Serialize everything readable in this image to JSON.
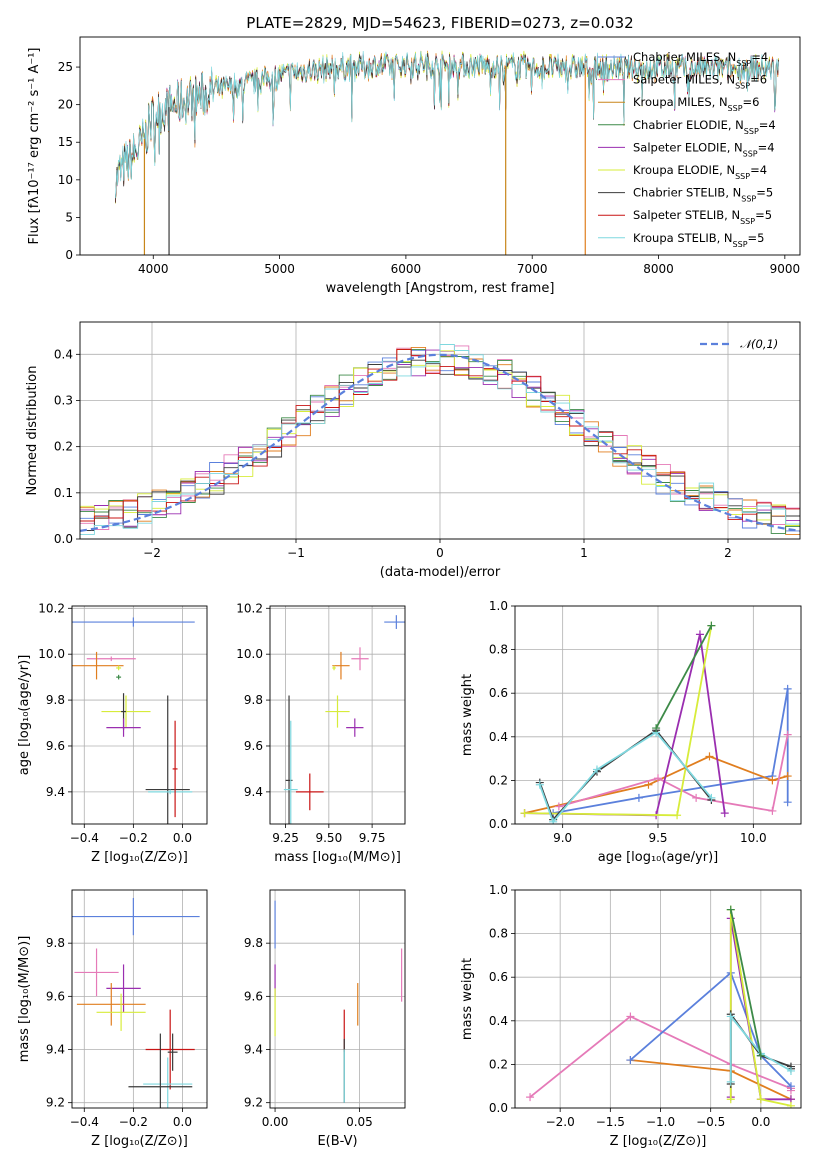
{
  "figure": {
    "title": "PLATE=2829, MJD=54623, FIBERID=0273, z=0.032"
  },
  "colors": {
    "Chabrier MILES": "#5b80dc",
    "Salpeter MILES": "#e57ab8",
    "Kroupa MILES": "#c8861a",
    "Chabrier ELODIE": "#3d8a48",
    "Salpeter ELODIE": "#9a2eb0",
    "Kroupa ELODIE": "#d7ec3a",
    "Chabrier STELIB": "#3b3b3b",
    "Salpeter STELIB": "#c81414",
    "Kroupa STELIB": "#7fd8df",
    "orange": "#e07e1f"
  },
  "chart_data": [
    {
      "id": "spectrum",
      "type": "line",
      "title": "PLATE=2829, MJD=54623, FIBERID=0273, z=0.032",
      "xlabel": "wavelength [Angstrom, rest frame]",
      "ylabel": "Flux [fλ10⁻¹⁷ erg cm⁻² s⁻¹ A⁻¹]",
      "xlim": [
        3420,
        9120
      ],
      "ylim": [
        0,
        29
      ],
      "xticks": [
        4000,
        5000,
        6000,
        7000,
        8000,
        9000
      ],
      "yticks": [
        0,
        5,
        10,
        15,
        20,
        25
      ],
      "legend_position": "right",
      "legend": [
        "Chabrier MILES, N_SSP=4",
        "Salpeter MILES, N_SSP=6",
        "Kroupa MILES, N_SSP=6",
        "Chabrier ELODIE, N_SSP=4",
        "Salpeter ELODIE, N_SSP=4",
        "Kroupa ELODIE, N_SSP=4",
        "Chabrier STELIB, N_SSP=5",
        "Salpeter STELIB, N_SSP=5",
        "Kroupa STELIB, N_SSP=5"
      ],
      "continuum": {
        "x": [
          3700,
          3780,
          3850,
          3920,
          4000,
          4100,
          4250,
          4500,
          4800,
          5000,
          5200,
          5500,
          5800,
          6000,
          6300,
          6600,
          6900,
          7200,
          7500,
          7800,
          8200,
          8600,
          8900
        ],
        "y": [
          10,
          12,
          13.5,
          15,
          18.5,
          19.5,
          20.5,
          22,
          23,
          23.8,
          24.5,
          25,
          25.2,
          25.3,
          25.3,
          25.2,
          25.1,
          24.9,
          24.9,
          24.9,
          24.8,
          24.8,
          24.8
        ]
      },
      "features": [
        {
          "series": "Kroupa MILES",
          "x": 3930,
          "y": 0
        },
        {
          "series": "Chabrier STELIB",
          "x": 4125,
          "y": 0
        },
        {
          "series": "Kroupa MILES",
          "x": 6790,
          "y": 0
        },
        {
          "series": "orange",
          "x": 7420,
          "y": 0
        }
      ],
      "x_range_note": [
        3700,
        8950
      ]
    },
    {
      "id": "residuals",
      "type": "area",
      "xlabel": "(data-model)/error",
      "ylabel": "Normed distribution",
      "xlim": [
        -2.5,
        2.5
      ],
      "ylim": [
        0,
        0.47
      ],
      "xticks": [
        -2,
        -1,
        0,
        1,
        2
      ],
      "yticks": [
        0.0,
        0.1,
        0.2,
        0.3,
        0.4
      ],
      "grid": true,
      "legend": [
        "𝒩(0,1)"
      ],
      "legend_position": "upper right",
      "normal": {
        "mean": 0,
        "sigma": 1,
        "style": "dashed"
      },
      "bin_width": 0.1
    },
    {
      "id": "age_vs_Z",
      "type": "scatter",
      "xlabel": "Z [log₁₀(Z/Z⊙)]",
      "ylabel": "age  [log₁₀(age/yr)]",
      "xlim": [
        -0.45,
        0.1
      ],
      "ylim": [
        9.26,
        10.21
      ],
      "xticks": [
        -0.4,
        -0.2,
        0.0
      ],
      "yticks": [
        9.4,
        9.6,
        9.8,
        10.0,
        10.2
      ],
      "grid": true,
      "points": [
        {
          "series": "Chabrier MILES",
          "x": -0.2,
          "xerr": 0.25,
          "y": 10.14,
          "yerr": 0.02
        },
        {
          "series": "Salpeter MILES",
          "x": -0.29,
          "xerr": 0.1,
          "y": 9.98,
          "yerr": 0.01
        },
        {
          "series": "orange",
          "x": -0.35,
          "xerr": 0.11,
          "y": 9.95,
          "yerr": 0.06
        },
        {
          "series": "Kroupa ELODIE",
          "x": -0.26,
          "xerr": 0.01,
          "y": 9.94,
          "yerr": 0.01
        },
        {
          "series": "Chabrier ELODIE",
          "x": -0.26,
          "xerr": 0.01,
          "y": 9.9,
          "yerr": 0.01
        },
        {
          "series": "Kroupa ELODIE",
          "x": -0.23,
          "xerr": 0.1,
          "y": 9.75,
          "yerr": 0.07
        },
        {
          "series": "Chabrier STELIB",
          "x": -0.24,
          "xerr": 0.01,
          "y": 9.75,
          "yerr": 0.08
        },
        {
          "series": "Salpeter ELODIE",
          "x": -0.24,
          "xerr": 0.07,
          "y": 9.68,
          "yerr": 0.04
        },
        {
          "series": "Chabrier STELIB",
          "x": -0.06,
          "xerr": 0.09,
          "y": 9.41,
          "yerr": 0.41
        },
        {
          "series": "Kroupa STELIB",
          "x": -0.05,
          "xerr": 0.09,
          "y": 9.4,
          "yerr": 0.01
        },
        {
          "series": "Salpeter STELIB",
          "x": -0.03,
          "xerr": 0.01,
          "y": 9.5,
          "yerr": 0.21
        }
      ]
    },
    {
      "id": "age_vs_mass",
      "type": "scatter",
      "xlabel": "mass [log₁₀(M/M⊙)]",
      "ylabel": "",
      "xlim": [
        9.16,
        9.94
      ],
      "ylim": [
        9.26,
        10.21
      ],
      "xticks": [
        9.25,
        9.5,
        9.75
      ],
      "yticks": [
        9.4,
        9.6,
        9.8,
        10.0,
        10.2
      ],
      "grid": true,
      "points": [
        {
          "series": "Chabrier MILES",
          "x": 9.89,
          "xerr": 0.07,
          "y": 10.14,
          "yerr": 0.03
        },
        {
          "series": "Salpeter MILES",
          "x": 9.68,
          "xerr": 0.05,
          "y": 9.98,
          "yerr": 0.05
        },
        {
          "series": "orange",
          "x": 9.57,
          "xerr": 0.05,
          "y": 9.95,
          "yerr": 0.06
        },
        {
          "series": "Kroupa ELODIE",
          "x": 9.53,
          "xerr": 0.01,
          "y": 9.94,
          "yerr": 0.01
        },
        {
          "series": "Kroupa ELODIE",
          "x": 9.55,
          "xerr": 0.07,
          "y": 9.75,
          "yerr": 0.07
        },
        {
          "series": "Salpeter ELODIE",
          "x": 9.65,
          "xerr": 0.05,
          "y": 9.68,
          "yerr": 0.04
        },
        {
          "series": "Salpeter STELIB",
          "x": 9.39,
          "xerr": 0.08,
          "y": 9.4,
          "yerr": 0.08
        },
        {
          "series": "Chabrier STELIB",
          "x": 9.27,
          "xerr": 0.02,
          "y": 9.45,
          "yerr": 0.37
        },
        {
          "series": "Kroupa STELIB",
          "x": 9.28,
          "xerr": 0.04,
          "y": 9.41,
          "yerr": 0.3
        }
      ]
    },
    {
      "id": "weight_vs_age",
      "type": "line",
      "xlabel": "age  [log₁₀(age/yr)]",
      "ylabel": "mass weight",
      "xlim": [
        8.75,
        10.25
      ],
      "ylim": [
        0,
        1.0
      ],
      "xticks": [
        9.0,
        9.5,
        10.0
      ],
      "yticks": [
        0.0,
        0.2,
        0.4,
        0.6,
        0.8,
        1.0
      ],
      "grid": true,
      "series": [
        {
          "name": "Chabrier MILES",
          "x": [
            8.95,
            9.4,
            10.1,
            10.18,
            10.18
          ],
          "y": [
            0.05,
            0.12,
            0.22,
            0.62,
            0.1
          ]
        },
        {
          "name": "orange",
          "x": [
            8.8,
            9.45,
            9.77,
            10.1,
            10.18
          ],
          "y": [
            0.05,
            0.18,
            0.31,
            0.2,
            0.22
          ]
        },
        {
          "name": "Salpeter MILES",
          "x": [
            8.98,
            9.5,
            9.7,
            10.1,
            10.18
          ],
          "y": [
            0.08,
            0.21,
            0.12,
            0.06,
            0.41
          ]
        },
        {
          "name": "Salpeter ELODIE",
          "x": [
            8.8,
            9.49,
            9.72,
            9.85
          ],
          "y": [
            0.05,
            0.04,
            0.87,
            0.05
          ]
        },
        {
          "name": "Kroupa ELODIE",
          "x": [
            8.8,
            9.6,
            9.78
          ],
          "y": [
            0.05,
            0.04,
            0.91
          ]
        },
        {
          "name": "Chabrier STELIB",
          "x": [
            8.88,
            8.95,
            9.18,
            9.49,
            9.78
          ],
          "y": [
            0.19,
            0.02,
            0.24,
            0.43,
            0.11
          ]
        },
        {
          "name": "Kroupa STELIB",
          "x": [
            8.88,
            8.95,
            9.18,
            9.49,
            9.78
          ],
          "y": [
            0.18,
            0.01,
            0.25,
            0.42,
            0.12
          ]
        },
        {
          "name": "Chabrier ELODIE",
          "x": [
            9.49,
            9.78
          ],
          "y": [
            0.44,
            0.91
          ]
        }
      ]
    },
    {
      "id": "mass_vs_Z",
      "type": "scatter",
      "xlabel": "Z [log₁₀(Z/Z⊙)]",
      "ylabel": "mass [log₁₀(M/M⊙)]",
      "xlim": [
        -0.45,
        0.1
      ],
      "ylim": [
        9.18,
        10.0
      ],
      "xticks": [
        -0.4,
        -0.2,
        0.0
      ],
      "yticks": [
        9.2,
        9.4,
        9.6,
        9.8
      ],
      "grid": true,
      "points": [
        {
          "series": "Chabrier MILES",
          "x": -0.2,
          "xerr": 0.27,
          "y": 9.9,
          "yerr": 0.07
        },
        {
          "series": "Salpeter MILES",
          "x": -0.35,
          "xerr": 0.09,
          "y": 9.69,
          "yerr": 0.09
        },
        {
          "series": "Salpeter ELODIE",
          "x": -0.24,
          "xerr": 0.07,
          "y": 9.63,
          "yerr": 0.09
        },
        {
          "series": "orange",
          "x": -0.29,
          "xerr": 0.14,
          "y": 9.57,
          "yerr": 0.08
        },
        {
          "series": "Kroupa ELODIE",
          "x": -0.25,
          "xerr": 0.1,
          "y": 9.54,
          "yerr": 0.07
        },
        {
          "series": "Salpeter STELIB",
          "x": -0.05,
          "xerr": 0.1,
          "y": 9.4,
          "yerr": 0.15
        },
        {
          "series": "Kroupa STELIB",
          "x": -0.06,
          "xerr": 0.1,
          "y": 9.27,
          "yerr": 0.1
        },
        {
          "series": "Chabrier STELIB",
          "x": -0.09,
          "xerr": 0.13,
          "y": 9.26,
          "yerr": 0.2
        },
        {
          "series": "Chabrier STELIB",
          "x": -0.04,
          "xerr": 0.02,
          "y": 9.39,
          "yerr": 0.07
        }
      ]
    },
    {
      "id": "mass_vs_EBV",
      "type": "scatter",
      "xlabel": "E(B-V)",
      "ylabel": "",
      "xlim": [
        -0.003,
        0.077
      ],
      "ylim": [
        9.18,
        10.0
      ],
      "xticks": [
        0.0,
        0.05
      ],
      "yticks": [
        9.2,
        9.4,
        9.6,
        9.8
      ],
      "grid": true,
      "points": [
        {
          "series": "Chabrier MILES",
          "x": 0.0,
          "xerr": 0,
          "y": 9.87,
          "yerr": 0.09
        },
        {
          "series": "Salpeter ELODIE",
          "x": 0.0,
          "xerr": 0,
          "y": 9.66,
          "yerr": 0.06
        },
        {
          "series": "Kroupa ELODIE",
          "x": 0.0,
          "xerr": 0,
          "y": 9.54,
          "yerr": 0.09
        },
        {
          "series": "Salpeter MILES",
          "x": 0.075,
          "xerr": 0,
          "y": 9.68,
          "yerr": 0.1
        },
        {
          "series": "orange",
          "x": 0.049,
          "xerr": 0,
          "y": 9.57,
          "yerr": 0.08
        },
        {
          "series": "Salpeter STELIB",
          "x": 0.041,
          "xerr": 0,
          "y": 9.47,
          "yerr": 0.08
        },
        {
          "series": "Chabrier STELIB",
          "x": 0.041,
          "xerr": 0,
          "y": 9.32,
          "yerr": 0.12
        },
        {
          "series": "Kroupa STELIB",
          "x": 0.041,
          "xerr": 0,
          "y": 9.3,
          "yerr": 0.1
        }
      ]
    },
    {
      "id": "weight_vs_Z",
      "type": "line",
      "xlabel": "Z [log₁₀(Z/Z⊙)]",
      "ylabel": "mass weight",
      "xlim": [
        -2.45,
        0.4
      ],
      "ylim": [
        0,
        1.0
      ],
      "xticks": [
        -2.0,
        -1.5,
        -1.0,
        -0.5,
        0.0
      ],
      "yticks": [
        0.0,
        0.2,
        0.4,
        0.6,
        0.8,
        1.0
      ],
      "grid": true,
      "series": [
        {
          "name": "Salpeter MILES",
          "x": [
            -2.3,
            -1.3,
            -0.3,
            0.3,
            0.3
          ],
          "y": [
            0.05,
            0.42,
            0.2,
            0.09,
            0.08
          ]
        },
        {
          "name": "orange",
          "x": [
            -1.3,
            -0.3,
            0.3
          ],
          "y": [
            0.22,
            0.17,
            0.04
          ]
        },
        {
          "name": "Chabrier MILES",
          "x": [
            -1.3,
            -0.3,
            0.0,
            0.3
          ],
          "y": [
            0.22,
            0.62,
            0.24,
            0.1
          ]
        },
        {
          "name": "Salpeter ELODIE",
          "x": [
            -0.3,
            -0.3,
            0.0,
            0.3
          ],
          "y": [
            0.05,
            0.87,
            0.04,
            0.04
          ]
        },
        {
          "name": "Kroupa ELODIE",
          "x": [
            -0.3,
            -0.3,
            0.0,
            0.3
          ],
          "y": [
            0.04,
            0.91,
            0.04,
            0.01
          ]
        },
        {
          "name": "Chabrier STELIB",
          "x": [
            -0.3,
            -0.3,
            0.0,
            0.3,
            0.3
          ],
          "y": [
            0.11,
            0.43,
            0.24,
            0.19,
            0.18
          ]
        },
        {
          "name": "Kroupa STELIB",
          "x": [
            -0.3,
            -0.3,
            0.0,
            0.3
          ],
          "y": [
            0.12,
            0.42,
            0.25,
            0.17
          ]
        },
        {
          "name": "Chabrier ELODIE",
          "x": [
            -0.3,
            0.0
          ],
          "y": [
            0.91,
            0.24
          ]
        }
      ]
    }
  ]
}
